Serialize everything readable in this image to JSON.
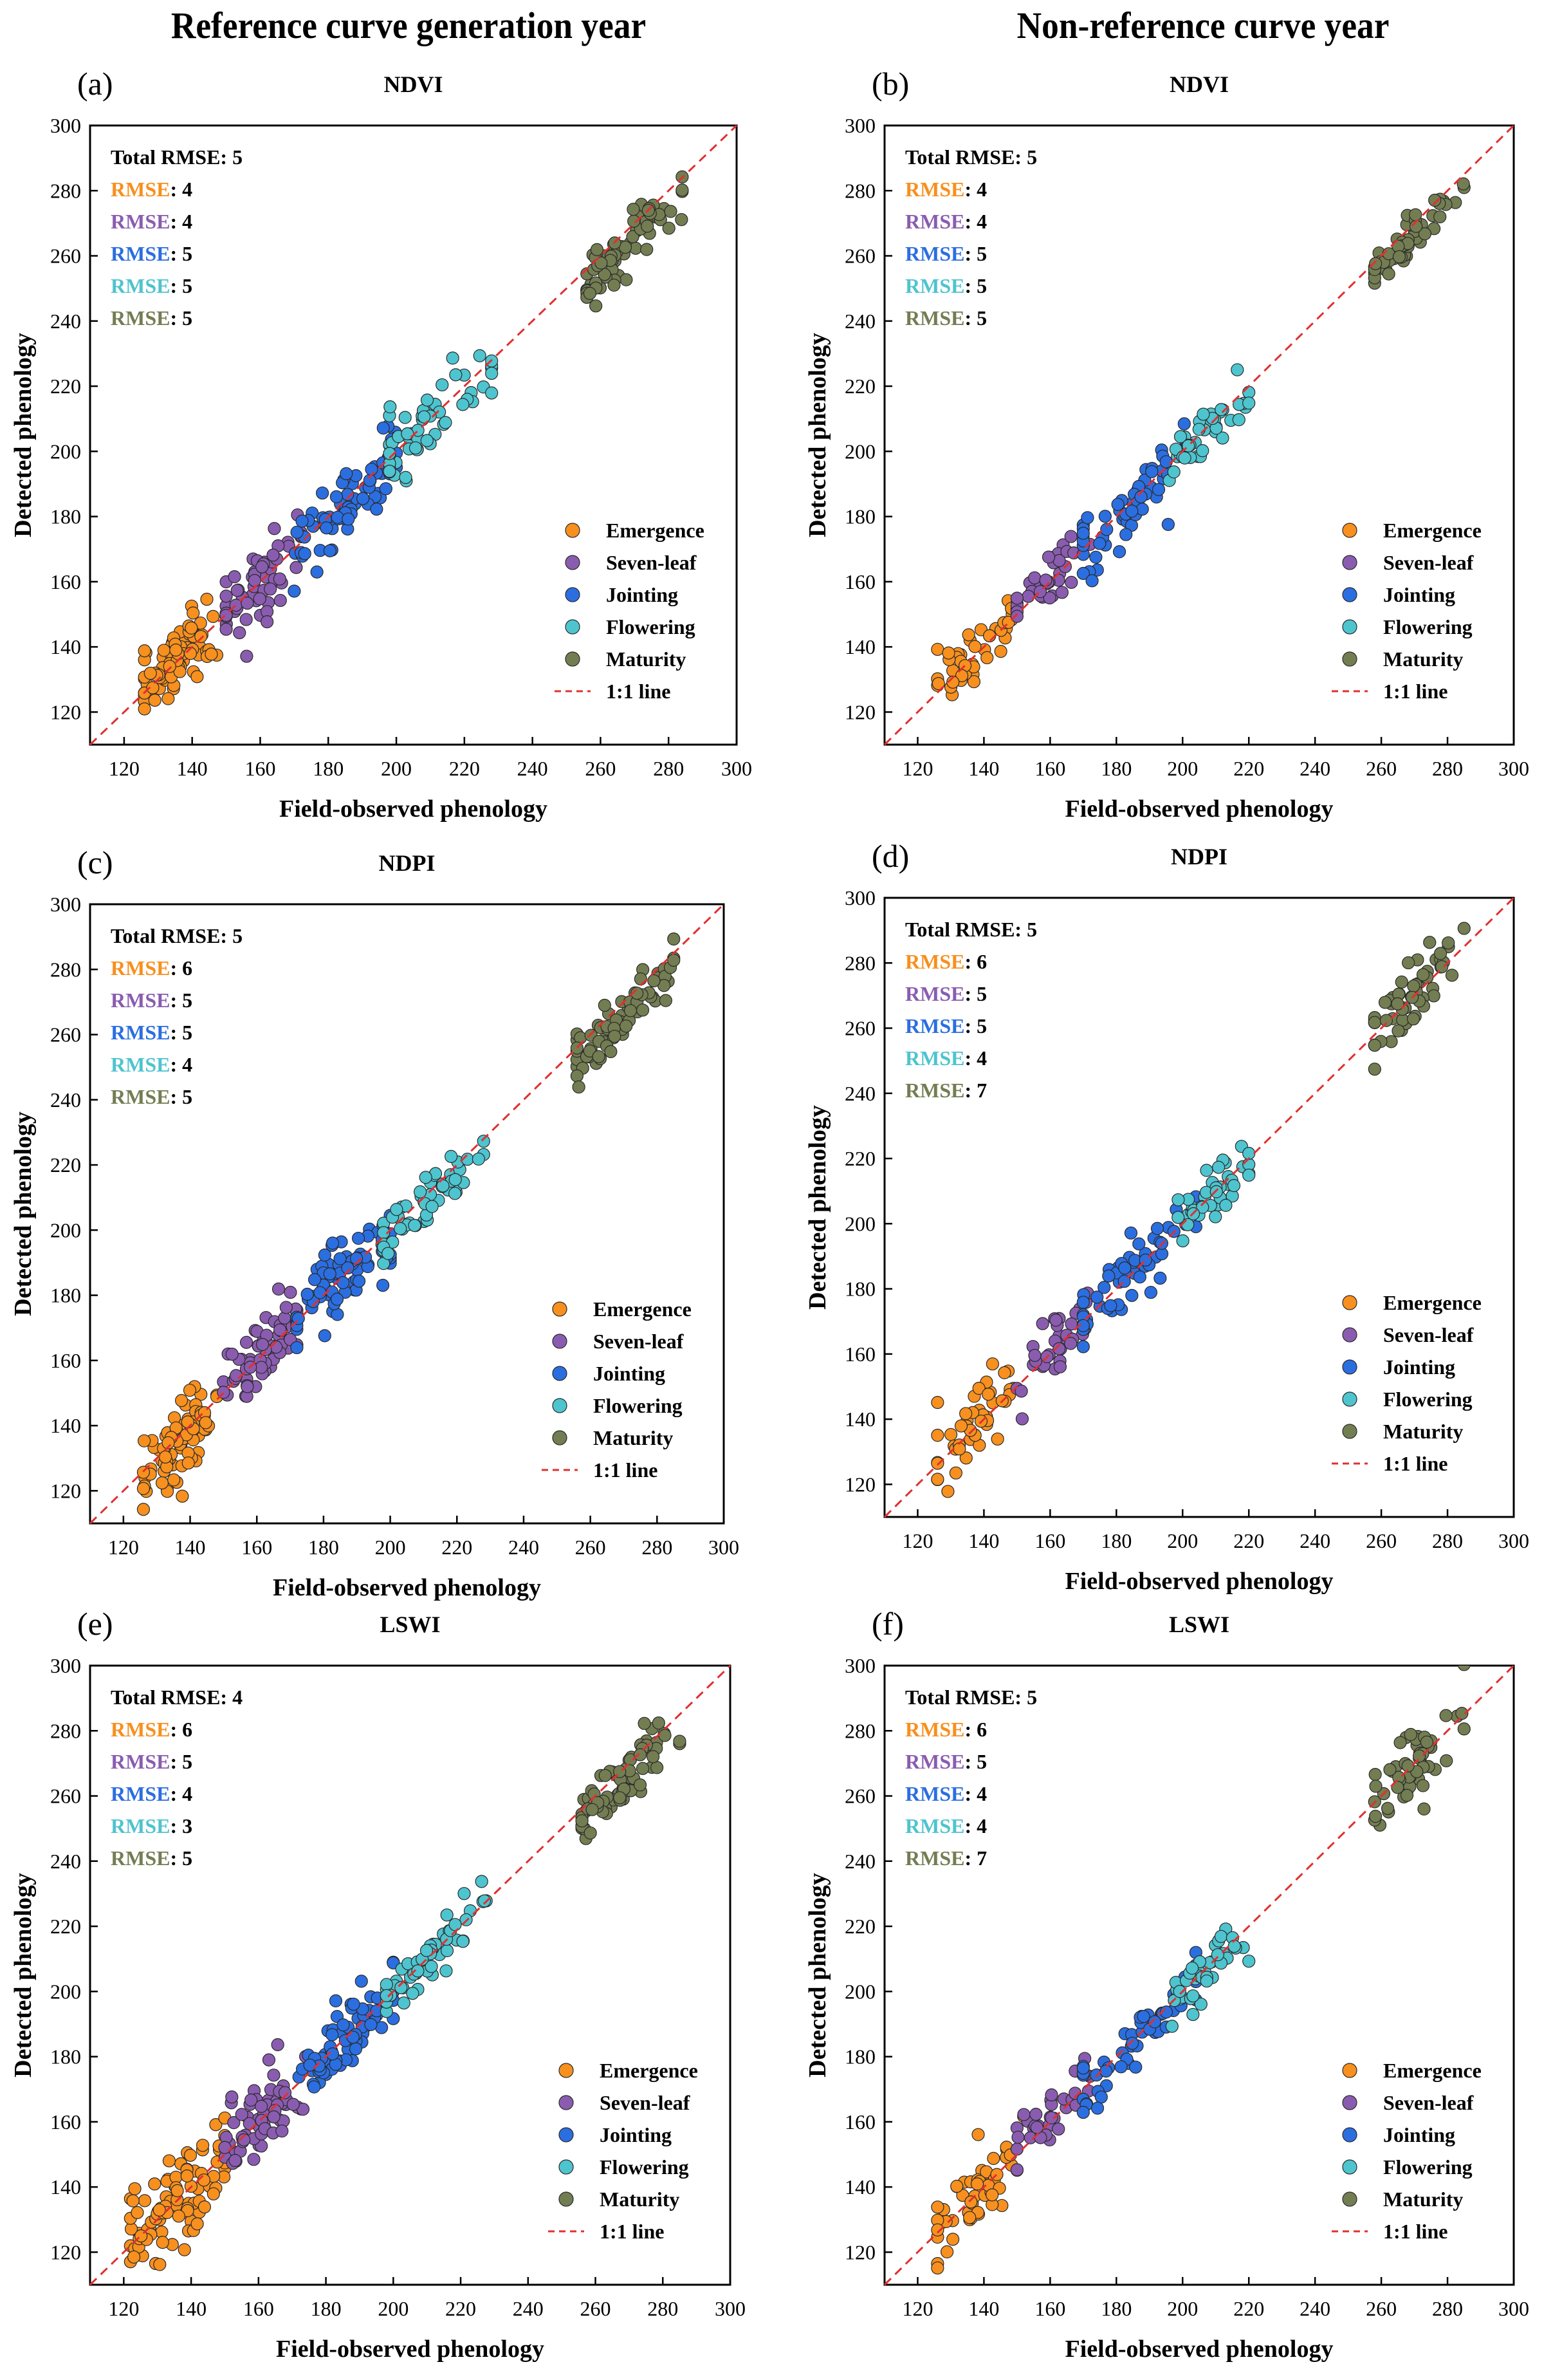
{
  "headers": {
    "left": "Reference curve generation year",
    "right": "Non-reference curve year"
  },
  "common": {
    "xlabel": "Field-observed phenology",
    "ylabel": "Detected phenology",
    "xlim": [
      110,
      300
    ],
    "ylim": [
      110,
      300
    ],
    "ticks": [
      120,
      140,
      160,
      180,
      200,
      220,
      240,
      260,
      280,
      300
    ],
    "total_label": "Total RMSE: ",
    "rmse_prefix": "RMSE",
    "legend": [
      "Emergence",
      "Seven-leaf",
      "Jointing",
      "Flowering",
      "Maturity",
      "1:1 line"
    ],
    "colors": {
      "Emergence": "#f7901e",
      "Seven-leaf": "#8a5cb0",
      "Jointing": "#2b6ee0",
      "Flowering": "#4ec4cf",
      "Maturity": "#737d52",
      "line": "#e03030",
      "edge": "#2a2a2a"
    }
  },
  "chart_data": [
    {
      "panel": "(a)",
      "type": "scatter",
      "title": "NDVI",
      "total_rmse": 5,
      "rmse": [
        4,
        4,
        5,
        5,
        5
      ],
      "series": [
        {
          "name": "Emergence",
          "x_range": [
            126,
            148
          ],
          "center": [
            135,
            136
          ],
          "spread": 7,
          "n": 90
        },
        {
          "name": "Seven-leaf",
          "x_range": [
            150,
            172
          ],
          "center": [
            161,
            161
          ],
          "spread": 7,
          "n": 60
        },
        {
          "name": "Jointing",
          "x_range": [
            170,
            200
          ],
          "center": [
            186,
            185
          ],
          "spread": 8,
          "n": 75
        },
        {
          "name": "Flowering",
          "x_range": [
            198,
            228
          ],
          "center": [
            210,
            210
          ],
          "spread": 7,
          "n": 55
        },
        {
          "name": "Maturity",
          "x_range": [
            256,
            284
          ],
          "center": [
            268,
            263
          ],
          "spread": 5,
          "n": 70
        }
      ]
    },
    {
      "panel": "(b)",
      "type": "scatter",
      "title": "NDVI",
      "total_rmse": 5,
      "rmse": [
        4,
        4,
        5,
        5,
        5
      ],
      "series": [
        {
          "name": "Emergence",
          "x_range": [
            126,
            150
          ],
          "center": [
            137,
            138
          ],
          "spread": 6,
          "n": 45
        },
        {
          "name": "Seven-leaf",
          "x_range": [
            150,
            172
          ],
          "center": [
            160,
            161
          ],
          "spread": 5,
          "n": 35
        },
        {
          "name": "Jointing",
          "x_range": [
            170,
            204
          ],
          "center": [
            184,
            184
          ],
          "spread": 7,
          "n": 55
        },
        {
          "name": "Flowering",
          "x_range": [
            196,
            220
          ],
          "center": [
            208,
            207
          ],
          "spread": 5,
          "n": 40
        },
        {
          "name": "Maturity",
          "x_range": [
            258,
            285
          ],
          "center": [
            268,
            265
          ],
          "spread": 4,
          "n": 55
        }
      ]
    },
    {
      "panel": "(c)",
      "type": "scatter",
      "title": "NDPI",
      "total_rmse": 5,
      "rmse": [
        6,
        5,
        5,
        4,
        5
      ],
      "series": [
        {
          "name": "Emergence",
          "x_range": [
            126,
            148
          ],
          "center": [
            137,
            136
          ],
          "spread": 8,
          "n": 80
        },
        {
          "name": "Seven-leaf",
          "x_range": [
            150,
            172
          ],
          "center": [
            161,
            162
          ],
          "spread": 7,
          "n": 60
        },
        {
          "name": "Jointing",
          "x_range": [
            172,
            200
          ],
          "center": [
            186,
            186
          ],
          "spread": 7,
          "n": 75
        },
        {
          "name": "Flowering",
          "x_range": [
            198,
            228
          ],
          "center": [
            211,
            210
          ],
          "spread": 6,
          "n": 55
        },
        {
          "name": "Maturity",
          "x_range": [
            256,
            285
          ],
          "center": [
            268,
            264
          ],
          "spread": 5,
          "n": 70
        }
      ]
    },
    {
      "panel": "(d)",
      "type": "scatter",
      "title": "NDPI",
      "total_rmse": 5,
      "rmse": [
        6,
        5,
        5,
        4,
        7
      ],
      "series": [
        {
          "name": "Emergence",
          "x_range": [
            126,
            152
          ],
          "center": [
            137,
            137
          ],
          "spread": 7,
          "n": 45
        },
        {
          "name": "Seven-leaf",
          "x_range": [
            150,
            172
          ],
          "center": [
            161,
            162
          ],
          "spread": 6,
          "n": 35
        },
        {
          "name": "Jointing",
          "x_range": [
            170,
            204
          ],
          "center": [
            184,
            184
          ],
          "spread": 6,
          "n": 55
        },
        {
          "name": "Flowering",
          "x_range": [
            196,
            220
          ],
          "center": [
            208,
            207
          ],
          "spread": 5,
          "n": 40
        },
        {
          "name": "Maturity",
          "x_range": [
            258,
            285
          ],
          "center": [
            268,
            268
          ],
          "spread": 7,
          "n": 55
        }
      ]
    },
    {
      "panel": "(e)",
      "type": "scatter",
      "title": "LSWI",
      "total_rmse": 4,
      "rmse": [
        6,
        5,
        4,
        3,
        5
      ],
      "series": [
        {
          "name": "Emergence",
          "x_range": [
            122,
            150
          ],
          "center": [
            136,
            137
          ],
          "spread": 9,
          "n": 95
        },
        {
          "name": "Seven-leaf",
          "x_range": [
            150,
            174
          ],
          "center": [
            162,
            162
          ],
          "spread": 7,
          "n": 65
        },
        {
          "name": "Jointing",
          "x_range": [
            172,
            200
          ],
          "center": [
            186,
            186
          ],
          "spread": 6,
          "n": 75
        },
        {
          "name": "Flowering",
          "x_range": [
            198,
            228
          ],
          "center": [
            211,
            211
          ],
          "spread": 5,
          "n": 55
        },
        {
          "name": "Maturity",
          "x_range": [
            256,
            285
          ],
          "center": [
            268,
            265
          ],
          "spread": 5,
          "n": 75
        }
      ]
    },
    {
      "panel": "(f)",
      "type": "scatter",
      "title": "LSWI",
      "total_rmse": 5,
      "rmse": [
        6,
        5,
        4,
        4,
        7
      ],
      "series": [
        {
          "name": "Emergence",
          "x_range": [
            126,
            152
          ],
          "center": [
            138,
            139
          ],
          "spread": 7,
          "n": 50
        },
        {
          "name": "Seven-leaf",
          "x_range": [
            150,
            172
          ],
          "center": [
            160,
            161
          ],
          "spread": 6,
          "n": 35
        },
        {
          "name": "Jointing",
          "x_range": [
            170,
            204
          ],
          "center": [
            185,
            184
          ],
          "spread": 6,
          "n": 55
        },
        {
          "name": "Flowering",
          "x_range": [
            196,
            220
          ],
          "center": [
            208,
            208
          ],
          "spread": 5,
          "n": 40
        },
        {
          "name": "Maturity",
          "x_range": [
            258,
            285
          ],
          "center": [
            268,
            268
          ],
          "spread": 7,
          "n": 55
        }
      ]
    }
  ]
}
